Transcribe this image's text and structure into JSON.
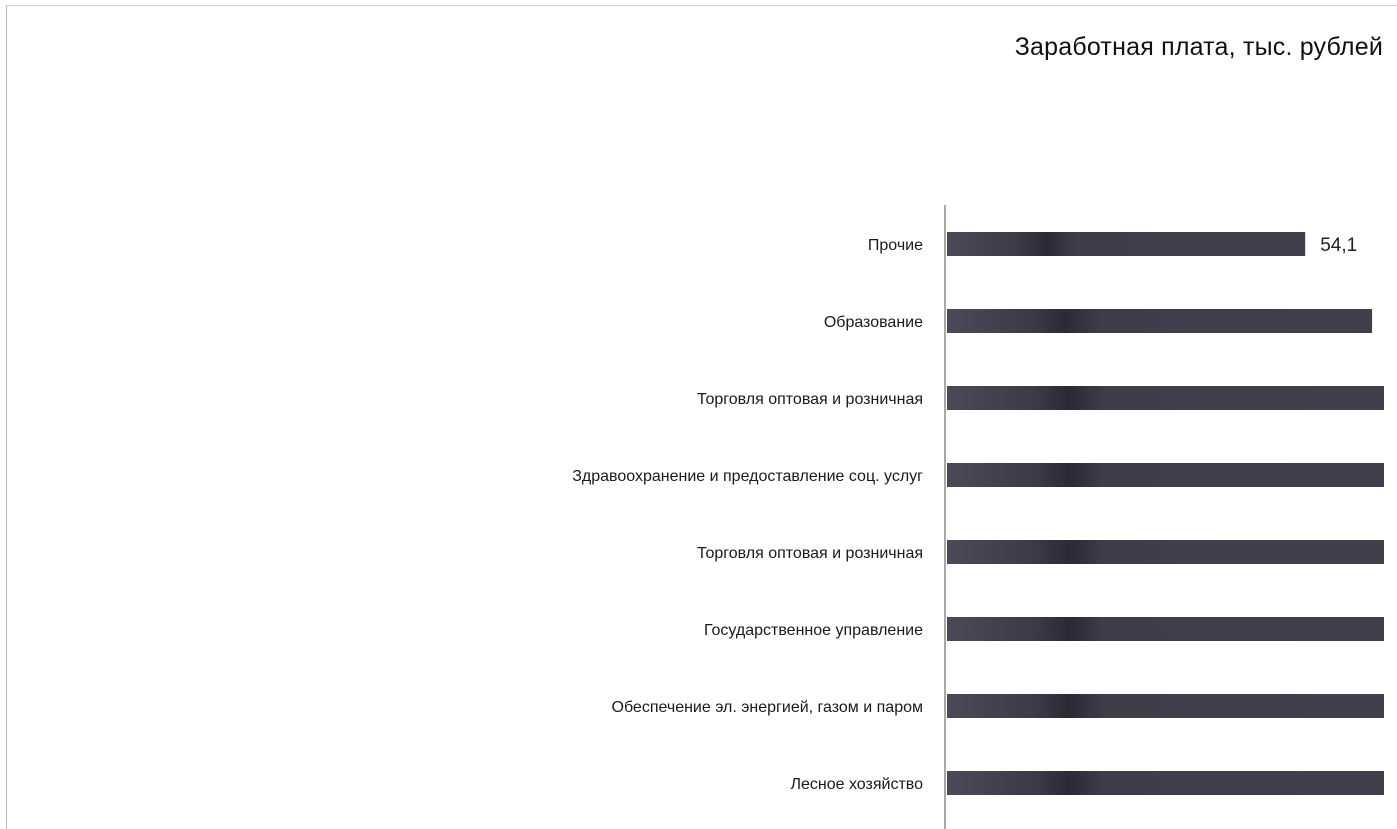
{
  "chart_data": {
    "type": "bar",
    "orientation": "horizontal",
    "title": "Заработная плата, тыс. рублей",
    "categories": [
      "Прочие",
      "Образование",
      "Торговля оптовая и розничная",
      "Здравоохранение и предоставление соц. услуг",
      "Торговля оптовая и розничная",
      "Государственное управление",
      "Обеспечение эл. энергией, газом и паром",
      "Лесное хозяйство"
    ],
    "values": [
      54.1,
      64.2,
      66.0,
      66.0,
      66.0,
      66.0,
      66.0,
      66.0
    ],
    "data_labels": [
      "54,1",
      "",
      "",
      "",
      "",
      "",
      "",
      ""
    ],
    "xlim": [
      0,
      66
    ],
    "bar_color": "#3d3d4a",
    "grid": false,
    "legend": "none"
  }
}
